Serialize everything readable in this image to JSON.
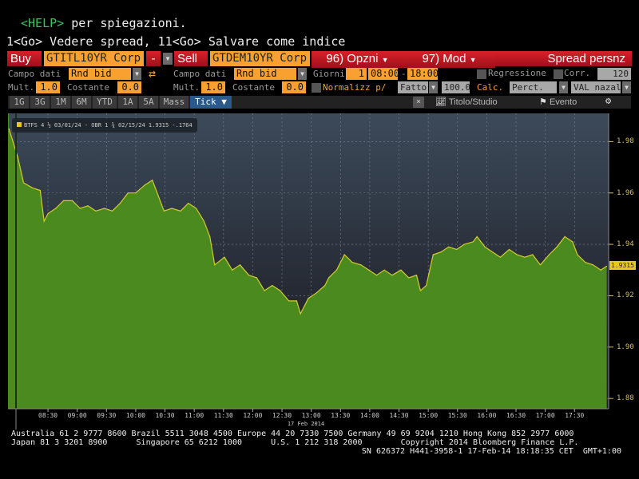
{
  "command_lines": {
    "help_key": "<HELP>",
    "help_text": " per spiegazioni.",
    "line2": "1<Go> Vedere spread, 11<Go> Salvare come indice"
  },
  "toolbar": {
    "buy_label": "Buy",
    "buy_ticker": "GTITL10YR Corp",
    "minus_label": "-",
    "sell_label": "Sell",
    "sell_ticker": "GTDEM10YR Corp",
    "options_label": "96) Opzni",
    "mod_label": "97) Mod",
    "spread_label": "Spread persnz"
  },
  "row2": {
    "campo_dati_label": "Campo dati",
    "campo_dati_1": "Rnd bid",
    "campo_dati_2": "Rnd bid",
    "giorni_label": "Giorni",
    "giorni_value": "1",
    "time_from": "08:00",
    "time_sep": "-",
    "time_to": "18:00",
    "regressione_label": "Regressione",
    "corr_label": "Corr.",
    "corr_value": "120"
  },
  "row3": {
    "mult_label": "Mult.",
    "mult_1": "1.0",
    "costante_label": "Costante",
    "costante_1": "0.0",
    "mult_2": "1.0",
    "costante_2": "0.0",
    "normalizz_label": "Normalizz p/",
    "fattor_value": "Fattor",
    "fattor_number": "100.0",
    "calc_label": "Calc.",
    "calc_value": "Perct.",
    "val_value": "VAL nazale"
  },
  "tabs": [
    "1G",
    "3G",
    "1M",
    "6M",
    "YTD",
    "1A",
    "5A",
    "Mass",
    "Tick ▼"
  ],
  "active_tab": "Tick ▼",
  "tools": {
    "close": "×",
    "titolo_studio": "Titolo/Studio",
    "evento": "Evento"
  },
  "colors": {
    "accent_red": "#c8141e",
    "field_orange": "#f8a030",
    "area_green": "#4a8a1e",
    "line_yellow": "#d4cc30"
  },
  "chart_data": {
    "type": "area",
    "legend": "BTFS 4 ½ 03/01/24 - OBR 1 ¾ 02/15/24 1.9315  -.1764",
    "last_value_label": "1.9315",
    "date_label": "17 Feb 2014",
    "x_ticks": [
      "08:30",
      "09:00",
      "09:30",
      "10:00",
      "10:30",
      "11:00",
      "11:30",
      "12:00",
      "12:30",
      "13:00",
      "13:30",
      "14:00",
      "14:30",
      "15:00",
      "15:30",
      "16:00",
      "16:30",
      "17:00",
      "17:30"
    ],
    "y_ticks": [
      "1.98",
      "1.96",
      "1.94",
      "1.92",
      "1.90",
      "1.88"
    ],
    "y_tick_values": [
      1.98,
      1.96,
      1.94,
      1.92,
      1.9,
      1.88
    ],
    "xlim": [
      "07:49",
      "18:05"
    ],
    "ylim": [
      1.876,
      1.991
    ],
    "grid": true,
    "x": [
      "07:50",
      "07:59",
      "08:05",
      "08:14",
      "08:22",
      "08:26",
      "08:30",
      "08:38",
      "08:46",
      "08:55",
      "09:03",
      "09:11",
      "09:19",
      "09:28",
      "09:36",
      "09:44",
      "09:52",
      "10:00",
      "10:09",
      "10:17",
      "10:21",
      "10:29",
      "10:37",
      "10:46",
      "10:54",
      "11:02",
      "11:10",
      "11:16",
      "11:21",
      "11:31",
      "11:39",
      "11:47",
      "11:56",
      "12:04",
      "12:12",
      "12:20",
      "12:28",
      "12:37",
      "12:45",
      "12:49",
      "12:57",
      "13:05",
      "13:14",
      "13:18",
      "13:26",
      "13:34",
      "13:42",
      "13:51",
      "13:59",
      "14:07",
      "14:15",
      "14:23",
      "14:32",
      "14:40",
      "14:48",
      "14:52",
      "14:58",
      "15:05",
      "15:13",
      "15:21",
      "15:29",
      "15:37",
      "15:46",
      "15:50",
      "15:58",
      "16:06",
      "16:14",
      "16:23",
      "16:31",
      "16:39",
      "16:47",
      "16:55",
      "17:04",
      "17:12",
      "17:20",
      "17:28",
      "17:33",
      "17:41",
      "17:49",
      "17:57",
      "18:03"
    ],
    "y": [
      1.985,
      1.974,
      1.964,
      1.962,
      1.961,
      1.949,
      1.952,
      1.954,
      1.957,
      1.957,
      1.954,
      1.955,
      1.953,
      1.954,
      1.953,
      1.956,
      1.96,
      1.96,
      1.963,
      1.965,
      1.961,
      1.953,
      1.954,
      1.953,
      1.956,
      1.954,
      1.949,
      1.943,
      1.932,
      1.935,
      1.93,
      1.932,
      1.928,
      1.927,
      1.922,
      1.924,
      1.922,
      1.918,
      1.918,
      1.913,
      1.919,
      1.921,
      1.924,
      1.927,
      1.93,
      1.936,
      1.933,
      1.932,
      1.93,
      1.928,
      1.93,
      1.928,
      1.93,
      1.927,
      1.928,
      1.922,
      1.924,
      1.936,
      1.937,
      1.939,
      1.938,
      1.94,
      1.941,
      1.943,
      1.939,
      1.937,
      1.935,
      1.938,
      1.936,
      1.935,
      1.936,
      1.932,
      1.936,
      1.939,
      1.943,
      1.941,
      1.936,
      1.933,
      1.932,
      1.93,
      1.9315
    ]
  },
  "footer": {
    "line1": "Australia 61 2 9777 8600 Brazil 5511 3048 4500 Europe 44 20 7330 7500 Germany 49 69 9204 1210 Hong Kong 852 2977 6000",
    "line2": "Japan 81 3 3201 8900      Singapore 65 6212 1000      U.S. 1 212 318 2000        Copyright 2014 Bloomberg Finance L.P.",
    "line3": "SN 626372 H441-3958-1 17-Feb-14 18:18:35 CET  GMT+1:00"
  }
}
